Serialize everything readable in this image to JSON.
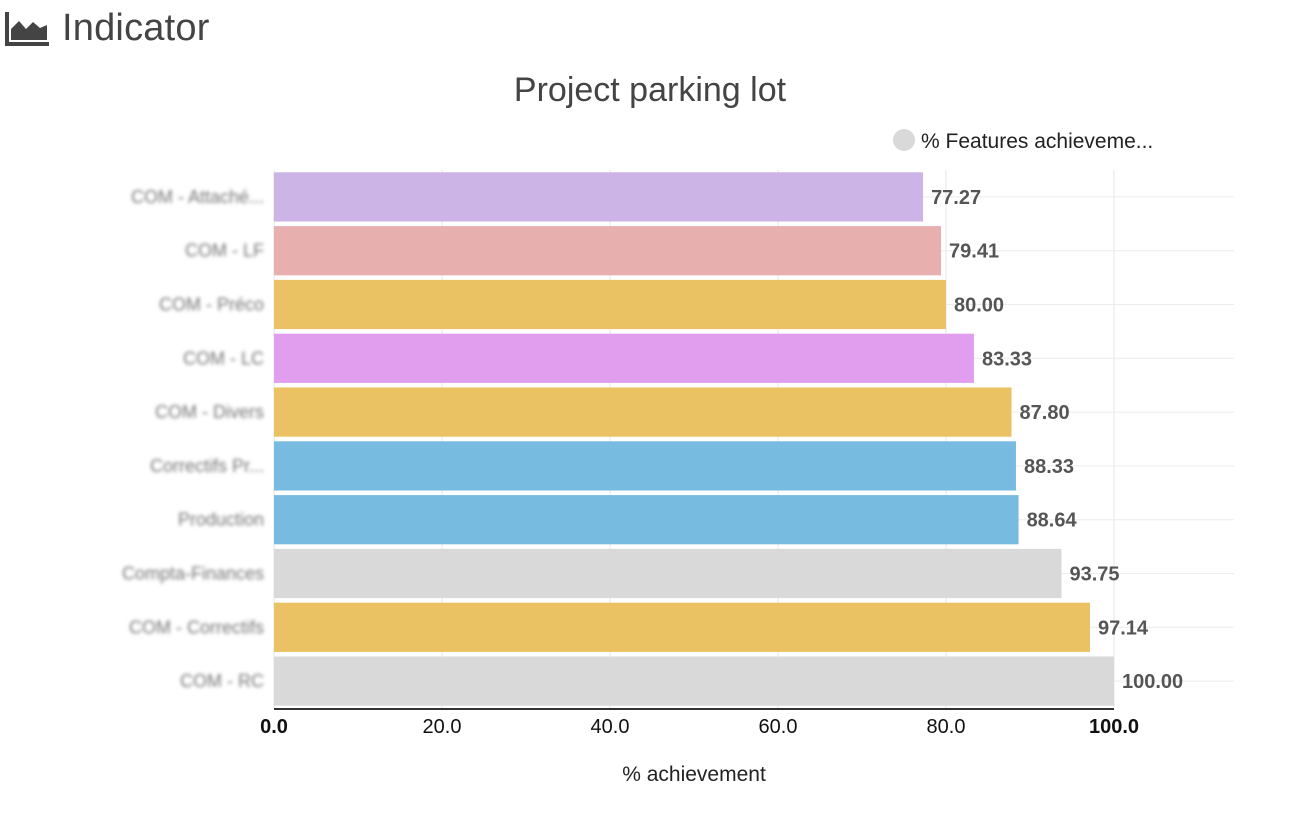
{
  "header": {
    "title": "Indicator",
    "icon": "area-chart-icon"
  },
  "chart_data": {
    "type": "bar",
    "orientation": "horizontal",
    "title": "Project parking lot",
    "xlabel": "% achievement",
    "ylabel": "",
    "xlim": [
      0,
      100
    ],
    "ticks": [
      "0.0",
      "20.0",
      "40.0",
      "60.0",
      "80.0",
      "100.0"
    ],
    "legend": {
      "position": "top-right",
      "label": "% Features achieveme...",
      "marker_color": "#d9d9d9"
    },
    "grid": true,
    "categories": [
      "COM - Attaché...",
      "COM - LF",
      "COM - Préco",
      "COM - LC",
      "COM - Divers",
      "Correctifs Pr...",
      "Production",
      "Compta-Finances",
      "COM - Correctifs",
      "COM - RC"
    ],
    "category_labels_blurred": true,
    "values": [
      77.27,
      79.41,
      80.0,
      83.33,
      87.8,
      88.33,
      88.64,
      93.75,
      97.14,
      100.0
    ],
    "value_labels": [
      "77.27",
      "79.41",
      "80.00",
      "83.33",
      "87.80",
      "88.33",
      "88.64",
      "93.75",
      "97.14",
      "100.00"
    ],
    "colors": [
      "#cdb4e6",
      "#e8afaf",
      "#ebc263",
      "#e29eee",
      "#ebc263",
      "#78bbe0",
      "#78bbe0",
      "#d9d9d9",
      "#ebc263",
      "#d9d9d9"
    ]
  }
}
